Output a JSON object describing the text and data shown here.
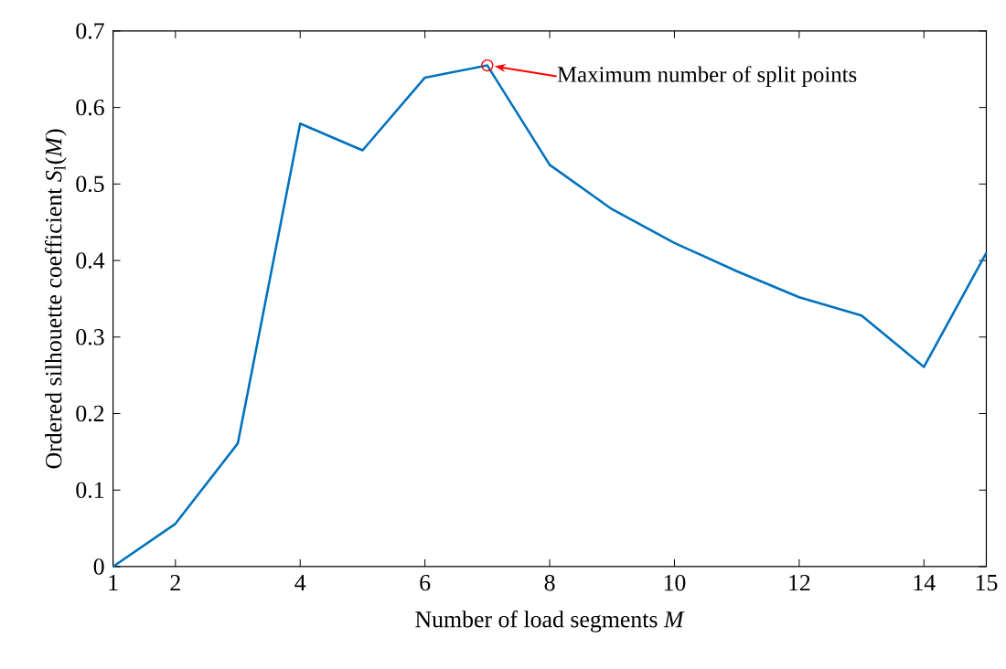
{
  "chart_data": {
    "type": "line",
    "xlabel": "Number of load segments *M*",
    "ylabel": "Ordered silhouette coefficient *S*$_{l}$(*M*)",
    "x": [
      1,
      2,
      3,
      4,
      5,
      6,
      7,
      8,
      9,
      10,
      11,
      12,
      13,
      14,
      15
    ],
    "series": [
      {
        "color": "#0072bd",
        "values": [
          0,
          0.056,
          0.161,
          0.579,
          0.544,
          0.639,
          0.655,
          0.525,
          0.467,
          0.423,
          0.386,
          0.352,
          0.328,
          0.261,
          0.41
        ]
      }
    ],
    "xlim": [
      1,
      15
    ],
    "ylim": [
      0,
      0.7
    ],
    "xticks": [
      1,
      2,
      4,
      6,
      8,
      10,
      12,
      14,
      15
    ],
    "yticks": [
      0,
      0.1,
      0.2,
      0.3,
      0.4,
      0.5,
      0.6,
      0.7
    ],
    "grid": false,
    "marker": "none",
    "line_style": "solid",
    "annotations": [
      {
        "text": "Maximum number of split points",
        "x": 7,
        "y": 0.655
      }
    ]
  }
}
